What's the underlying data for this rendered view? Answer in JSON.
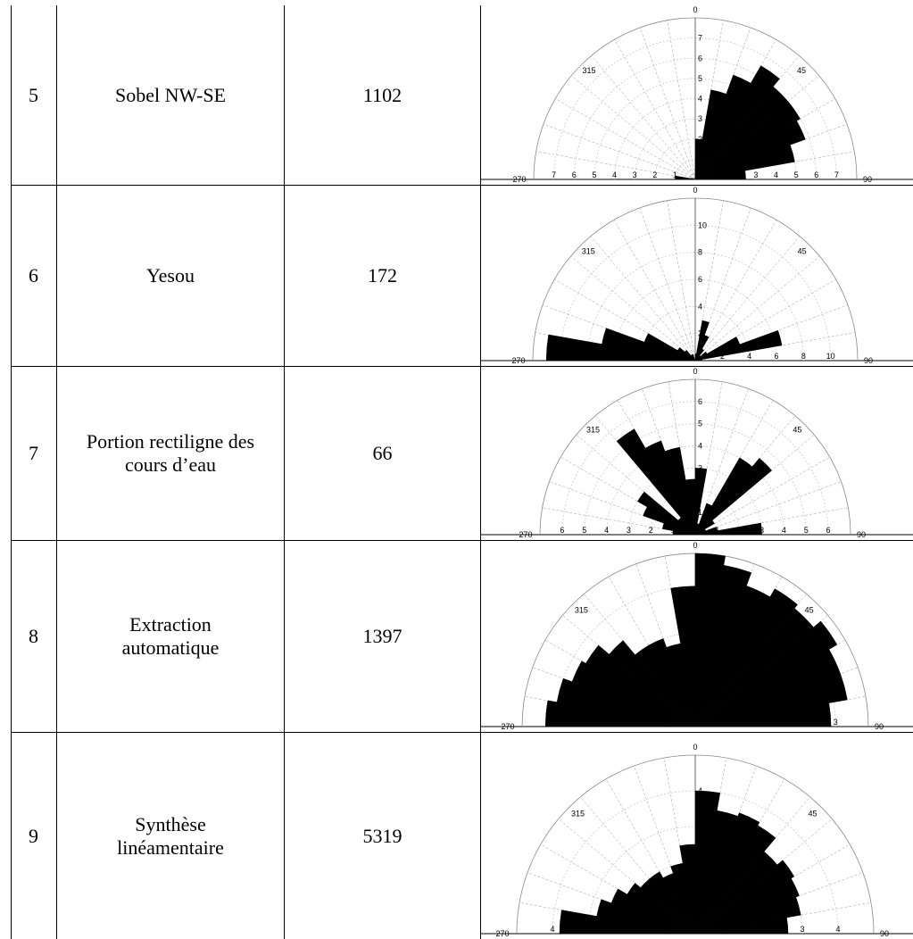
{
  "rows": [
    {
      "number": "5",
      "method": "Sobel NW-SE",
      "count": "1102"
    },
    {
      "number": "6",
      "method": "Yesou",
      "count": "172"
    },
    {
      "number": "7",
      "method_line1": "Portion rectiligne des",
      "method_line2": "cours d’eau",
      "count": "66"
    },
    {
      "number": "8",
      "method_line1": "Extraction",
      "method_line2": "automatique",
      "count": "1397"
    },
    {
      "number": "9",
      "method_line1": "Synthèse",
      "method_line2": "linéamentaire",
      "count": "5319"
    }
  ],
  "chart_data": [
    {
      "type": "rose",
      "angular_labels": [
        "270",
        "315",
        "0",
        "45",
        "90"
      ],
      "radial_ticks": [
        1,
        2,
        3,
        4,
        5,
        6,
        7
      ],
      "rmax": 8,
      "bin_width_deg": 10,
      "bins_deg": [
        -85,
        -75,
        -65,
        -55,
        -45,
        -35,
        -25,
        -15,
        -5,
        5,
        15,
        25,
        35,
        45,
        55,
        65,
        75,
        85
      ],
      "values": [
        1,
        0.2,
        0,
        0,
        0,
        0,
        0,
        0,
        0,
        2,
        4.5,
        5.5,
        6.5,
        6,
        6,
        5.8,
        5,
        2.5
      ]
    },
    {
      "type": "rose",
      "angular_labels": [
        "270",
        "315",
        "0",
        "45",
        "90"
      ],
      "radial_ticks": [
        2,
        4,
        6,
        8,
        10
      ],
      "rmax": 12,
      "bin_width_deg": 10,
      "bins_deg": [
        -85,
        -75,
        -65,
        -55,
        -45,
        -35,
        -25,
        -15,
        -5,
        5,
        15,
        25,
        35,
        45,
        55,
        65,
        75,
        85
      ],
      "values": [
        11,
        7,
        4,
        1.5,
        1,
        0.5,
        0.5,
        0,
        0,
        0.5,
        3,
        2,
        1,
        0.5,
        1,
        3.5,
        6.5,
        0.5
      ]
    },
    {
      "type": "rose",
      "angular_labels": [
        "270",
        "315",
        "0",
        "45",
        "90"
      ],
      "radial_ticks": [
        1,
        2,
        3,
        4,
        5,
        6
      ],
      "rmax": 7,
      "bin_width_deg": 10,
      "bins_deg": [
        -85,
        -75,
        -65,
        -55,
        -45,
        -35,
        -25,
        -15,
        -5,
        5,
        15,
        25,
        35,
        45,
        55,
        65,
        75,
        85
      ],
      "values": [
        1,
        1.5,
        2.5,
        3,
        1,
        5.5,
        4.5,
        4,
        2.5,
        3,
        0.5,
        1.5,
        4,
        4.5,
        1,
        0.5,
        1,
        3
      ]
    },
    {
      "type": "rose",
      "angular_labels": [
        "270",
        "315",
        "0",
        "45",
        "90"
      ],
      "radial_ticks": [
        1,
        2,
        3
      ],
      "rmax": 3.7,
      "bin_width_deg": 10,
      "bins_deg": [
        -85,
        -75,
        -65,
        -55,
        -45,
        -35,
        -25,
        -15,
        -5,
        5,
        15,
        25,
        35,
        45,
        55,
        65,
        75,
        85
      ],
      "values": [
        3.2,
        3,
        2.8,
        2.7,
        2.4,
        2,
        2,
        1.8,
        3,
        3.7,
        3.5,
        3.2,
        3.4,
        3.3,
        3.5,
        3.3,
        3.3,
        2.9
      ]
    },
    {
      "type": "rose",
      "angular_labels": [
        "270",
        "315",
        "0",
        "45",
        "90"
      ],
      "radial_ticks": [
        1,
        2,
        3,
        4
      ],
      "rmax": 5,
      "bin_width_deg": 10,
      "bins_deg": [
        -85,
        -75,
        -65,
        -55,
        -45,
        -35,
        -25,
        -15,
        -5,
        5,
        15,
        25,
        35,
        45,
        55,
        65,
        75,
        85
      ],
      "values": [
        3.8,
        2.8,
        2.5,
        2.2,
        2,
        2,
        1.8,
        2,
        2.5,
        4,
        3.5,
        3.6,
        3.5,
        3,
        3.2,
        3.1,
        3,
        2.6
      ]
    }
  ]
}
